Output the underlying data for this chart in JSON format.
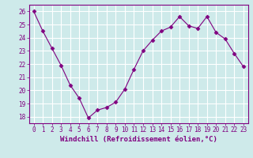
{
  "x": [
    0,
    1,
    2,
    3,
    4,
    5,
    6,
    7,
    8,
    9,
    10,
    11,
    12,
    13,
    14,
    15,
    16,
    17,
    18,
    19,
    20,
    21,
    22,
    23
  ],
  "y": [
    26.0,
    24.5,
    23.2,
    21.9,
    20.4,
    19.4,
    17.9,
    18.5,
    18.7,
    19.1,
    20.1,
    21.6,
    23.0,
    23.8,
    24.5,
    24.8,
    25.6,
    24.9,
    24.7,
    25.6,
    24.4,
    23.9,
    22.8,
    21.8
  ],
  "line_color": "#800080",
  "marker": "D",
  "marker_size": 2.5,
  "bg_color": "#ceeaea",
  "grid_color": "#b0d8d8",
  "xlabel": "Windchill (Refroidissement éolien,°C)",
  "ylim": [
    17.5,
    26.5
  ],
  "yticks": [
    18,
    19,
    20,
    21,
    22,
    23,
    24,
    25,
    26
  ],
  "xticks": [
    0,
    1,
    2,
    3,
    4,
    5,
    6,
    7,
    8,
    9,
    10,
    11,
    12,
    13,
    14,
    15,
    16,
    17,
    18,
    19,
    20,
    21,
    22,
    23
  ],
  "axis_color": "#800080",
  "tick_color": "#800080",
  "label_color": "#800080",
  "tick_fontsize": 5.5,
  "label_fontsize": 6.5
}
